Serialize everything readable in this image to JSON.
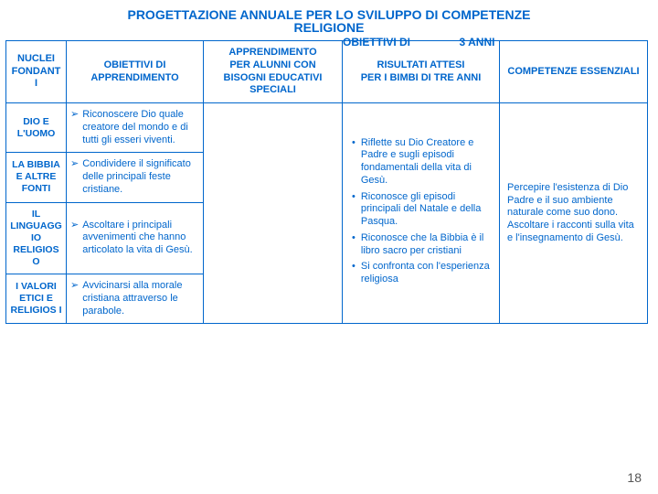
{
  "title_line1": "PROGETTAZIONE ANNUALE PER LO SVILUPPO DI COMPETENZE",
  "title_line2": "RELIGIONE",
  "overlay1_a": "OBIETTIVI DI",
  "overlay1_b": "3 ANNI",
  "headers": {
    "c0": "NUCLEI FONDANT I",
    "c1": "OBIETTIVI  DI APPRENDIMENTO",
    "c2_a": "APPRENDIMENTO",
    "c2_b": "PER ALUNNI CON BISOGNI EDUCATIVI SPECIALI",
    "c3_a": "RISULTATI ATTESI",
    "c3_b": "PER I BIMBI DI TRE ANNI",
    "c4": "COMPETENZE ESSENZIALI"
  },
  "rows": [
    {
      "label": "DIO E L'UOMO",
      "text": "Riconoscere Dio quale creatore del mondo e di tutti gli esseri viventi."
    },
    {
      "label": "LA BIBBIA E ALTRE FONTI",
      "text": "Condividere il significato delle principali feste cristiane."
    },
    {
      "label": "IL LINGUAGG IO RELIGIOS O",
      "text": "Ascoltare i principali avvenimenti che hanno articolato la vita di Gesù."
    },
    {
      "label": "I VALORI ETICI E RELIGIOS I",
      "text": "Avvicinarsi alla morale cristiana attraverso le parabole."
    }
  ],
  "risultati": [
    "Riflette su Dio Creatore e Padre e sugli episodi fondamentali della vita di Gesù.",
    "Riconosce gli episodi principali del Natale e della Pasqua.",
    "Riconosce che la Bibbia è il libro sacro per cristiani",
    "Si confronta con l'esperienza religiosa"
  ],
  "competenze": "Percepire l'esistenza di Dio Padre e il suo ambiente naturale come suo dono. Ascoltare i racconti sulla vita e l'insegnamento di Gesù.",
  "arrow_glyph": "➢",
  "bullet_glyph": "•",
  "page_number": "18"
}
